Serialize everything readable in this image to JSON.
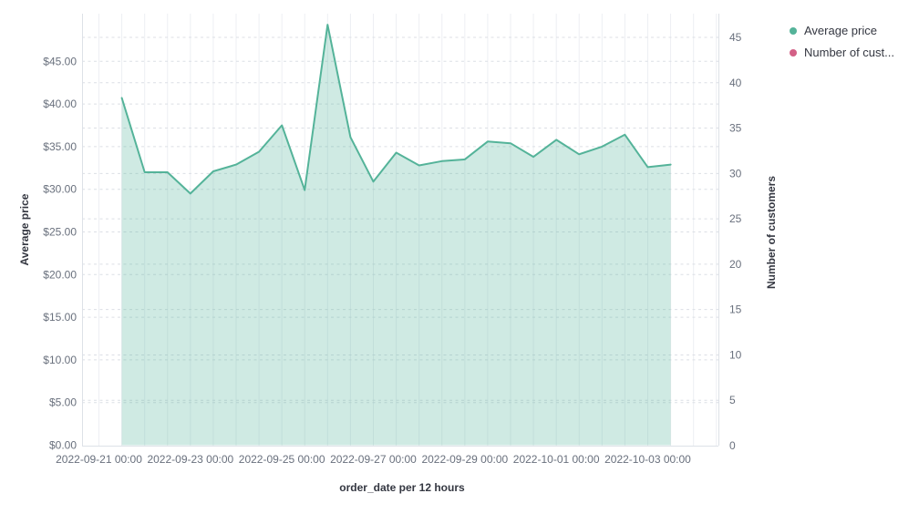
{
  "chart_data": {
    "type": "area",
    "title": "",
    "x_axis": {
      "title": "order_date per 12 hours",
      "bucket": "12 hours",
      "tick_labels": [
        "2022-09-21 00:00",
        "2022-09-23 00:00",
        "2022-09-25 00:00",
        "2022-09-27 00:00",
        "2022-09-29 00:00",
        "2022-10-01 00:00",
        "2022-10-03 00:00"
      ]
    },
    "y_axis_left": {
      "title": "Average price",
      "tick_values": [
        0,
        5,
        10,
        15,
        20,
        25,
        30,
        35,
        40,
        45
      ],
      "tick_labels": [
        "$0.00",
        "$5.00",
        "$10.00",
        "$15.00",
        "$20.00",
        "$25.00",
        "$30.00",
        "$35.00",
        "$40.00",
        "$45.00"
      ]
    },
    "y_axis_right": {
      "title": "Number of customers",
      "tick_values": [
        0,
        5,
        10,
        15,
        20,
        25,
        30,
        35,
        40,
        45
      ],
      "tick_labels": [
        "0",
        "5",
        "10",
        "15",
        "20",
        "25",
        "30",
        "35",
        "40",
        "45"
      ]
    },
    "legend": {
      "position": "top-right",
      "items": [
        {
          "label": "Average price",
          "color": "#54b399"
        },
        {
          "label": "Number of cust...",
          "color": "#d36086"
        }
      ]
    },
    "series": [
      {
        "name": "Average price",
        "type": "area",
        "axis": "left",
        "color": "#54b399",
        "fill_opacity": 0.28,
        "x": [
          "2022-09-21 12:00",
          "2022-09-22 00:00",
          "2022-09-22 12:00",
          "2022-09-23 00:00",
          "2022-09-23 12:00",
          "2022-09-24 00:00",
          "2022-09-24 12:00",
          "2022-09-25 00:00",
          "2022-09-25 12:00",
          "2022-09-26 00:00",
          "2022-09-26 12:00",
          "2022-09-27 00:00",
          "2022-09-27 12:00",
          "2022-09-28 00:00",
          "2022-09-28 12:00",
          "2022-09-29 00:00",
          "2022-09-29 12:00",
          "2022-09-30 00:00",
          "2022-09-30 12:00",
          "2022-10-01 00:00",
          "2022-10-01 12:00",
          "2022-10-02 00:00",
          "2022-10-02 12:00",
          "2022-10-03 00:00",
          "2022-10-03 12:00"
        ],
        "values": [
          40.7,
          32.0,
          32.0,
          29.5,
          32.1,
          32.9,
          34.4,
          37.5,
          29.9,
          49.3,
          36.1,
          30.9,
          34.3,
          32.8,
          33.3,
          33.5,
          35.6,
          35.4,
          33.8,
          35.8,
          34.1,
          35.0,
          36.4,
          32.6,
          32.9
        ]
      },
      {
        "name": "Number of customers",
        "type": "line",
        "axis": "right",
        "color": "#d36086",
        "values": []
      }
    ],
    "grid": {
      "vertical_color": "#edeff3",
      "horizontal_dash_color": "#dcdfe5",
      "border_color": "#dde1e7"
    },
    "text_colors": {
      "tick": "#69707d",
      "title": "#343741"
    }
  }
}
